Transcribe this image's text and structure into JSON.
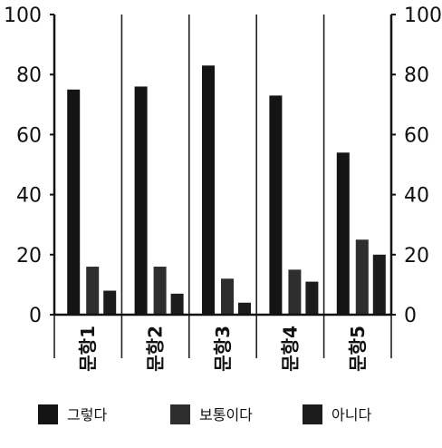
{
  "chart_data": {
    "type": "bar",
    "categories": [
      "문항1",
      "문항2",
      "문항3",
      "문항4",
      "문항5"
    ],
    "series": [
      {
        "name": "그렇다",
        "values": [
          75,
          76,
          83,
          73,
          54
        ],
        "color": "#141414"
      },
      {
        "name": "보통이다",
        "values": [
          16,
          16,
          12,
          15,
          25
        ],
        "color": "#2e2e2e"
      },
      {
        "name": "아니다",
        "values": [
          8,
          7,
          4,
          11,
          20
        ],
        "color": "#1c1c1c"
      }
    ],
    "ylim": [
      0,
      100
    ],
    "yticks": [
      0,
      20,
      40,
      60,
      80,
      100
    ],
    "right_axis_ticks": true,
    "grid": "vertical-category-separators",
    "legend_position": "bottom"
  }
}
